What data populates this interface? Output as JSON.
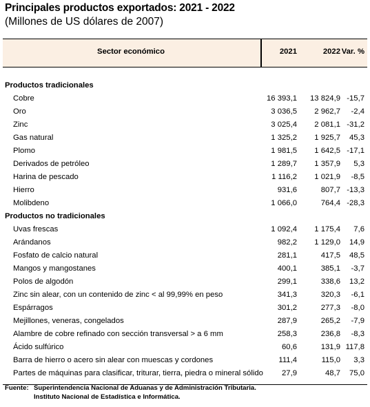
{
  "title": "Principales productos exportados: 2021 - 2022",
  "subtitle": "(Millones de US dólares de 2007)",
  "table": {
    "headers": {
      "sector": "Sector económico",
      "y2021": "2021",
      "y2022": "2022",
      "var": "Var. %"
    },
    "rows": [
      {
        "type": "group",
        "label": "Productos tradicionales"
      },
      {
        "type": "item",
        "label": "Cobre",
        "v2021": "16 393,1",
        "v2022": "13 824,9",
        "var": "-15,7"
      },
      {
        "type": "item",
        "label": "Oro",
        "v2021": "3 036,5",
        "v2022": "2 962,7",
        "var": "-2,4"
      },
      {
        "type": "item",
        "label": "Zinc",
        "v2021": "3 025,4",
        "v2022": "2 081,1",
        "var": "-31,2"
      },
      {
        "type": "item",
        "label": "Gas natural",
        "v2021": "1 325,2",
        "v2022": "1 925,7",
        "var": "45,3"
      },
      {
        "type": "item",
        "label": "Plomo",
        "v2021": "1 981,5",
        "v2022": "1 642,5",
        "var": "-17,1"
      },
      {
        "type": "item",
        "label": "Derivados de petróleo",
        "v2021": "1 289,7",
        "v2022": "1 357,9",
        "var": "5,3"
      },
      {
        "type": "item",
        "label": "Harina de pescado",
        "v2021": "1 116,2",
        "v2022": "1 021,9",
        "var": "-8,5"
      },
      {
        "type": "item",
        "label": "Hierro",
        "v2021": "931,6",
        "v2022": "807,7",
        "var": "-13,3"
      },
      {
        "type": "item",
        "label": "Molibdeno",
        "v2021": "1 066,0",
        "v2022": "764,4",
        "var": "-28,3"
      },
      {
        "type": "group",
        "label": "Productos no tradicionales"
      },
      {
        "type": "item",
        "label": "Uvas frescas",
        "v2021": "1 092,4",
        "v2022": "1 175,4",
        "var": "7,6"
      },
      {
        "type": "item",
        "label": "Arándanos",
        "v2021": "982,2",
        "v2022": "1 129,0",
        "var": "14,9"
      },
      {
        "type": "item",
        "label": "Fosfato de calcio natural",
        "v2021": "281,1",
        "v2022": "417,5",
        "var": "48,5"
      },
      {
        "type": "item",
        "label": "Mangos y mangostanes",
        "v2021": "400,1",
        "v2022": "385,1",
        "var": "-3,7"
      },
      {
        "type": "item",
        "label": "Polos de algodón",
        "v2021": "299,1",
        "v2022": "338,6",
        "var": "13,2"
      },
      {
        "type": "item",
        "label": "Zinc sin alear, con un contenido de zinc < al 99,99% en peso",
        "v2021": "341,3",
        "v2022": "320,3",
        "var": "-6,1"
      },
      {
        "type": "item",
        "label": "Espárragos",
        "v2021": "301,2",
        "v2022": "277,3",
        "var": "-8,0"
      },
      {
        "type": "item",
        "label": "Mejillones, veneras, congelados",
        "v2021": "287,9",
        "v2022": "265,2",
        "var": "-7,9"
      },
      {
        "type": "item",
        "label": "Alambre de cobre refinado con sección transversal > a 6 mm",
        "v2021": "258,3",
        "v2022": "236,8",
        "var": "-8,3"
      },
      {
        "type": "item",
        "label": "Ácido sulfúrico",
        "v2021": "60,6",
        "v2022": "131,9",
        "var": "117,8"
      },
      {
        "type": "item",
        "label": "Barra de hierro o acero sin alear con muescas y cordones",
        "v2021": "111,4",
        "v2022": "115,0",
        "var": "3,3"
      },
      {
        "type": "item",
        "label": "Partes de máquinas para clasificar, triturar, tierra, piedra o mineral sólido",
        "v2021": "27,9",
        "v2022": "48,7",
        "var": "75,0"
      }
    ]
  },
  "source": {
    "label": "Fuente:",
    "line1": "Superintendencia Nacional de Aduanas y de Administración Tributaria.",
    "line2": "Instituto Nacional de Estadística e Informática."
  },
  "colors": {
    "header_background": "#fbefe3",
    "text": "#000000",
    "rule": "#000000"
  }
}
